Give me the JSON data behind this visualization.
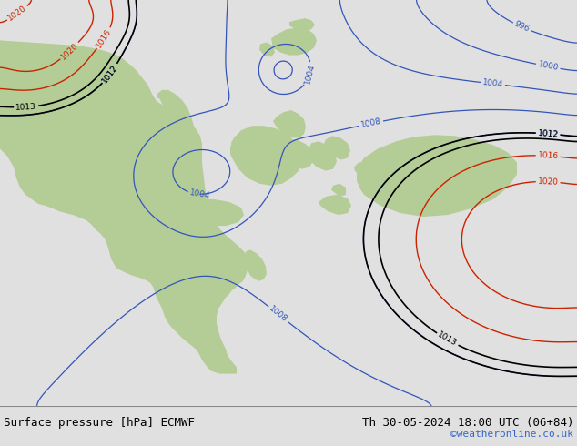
{
  "title_left": "Surface pressure [hPa] ECMWF",
  "title_right": "Th 30-05-2024 18:00 UTC (06+84)",
  "credit": "©weatheronline.co.uk",
  "ocean_color": "#c8d0d8",
  "land_color": "#b4cc96",
  "land_color2": "#a8bc8a",
  "gray_color": "#a0a8a0",
  "contour_blue": "#3355bb",
  "contour_black": "#000000",
  "contour_red": "#cc2200",
  "bottom_bg": "#e0e0e0",
  "fig_width": 6.34,
  "fig_height": 4.9,
  "dpi": 100
}
